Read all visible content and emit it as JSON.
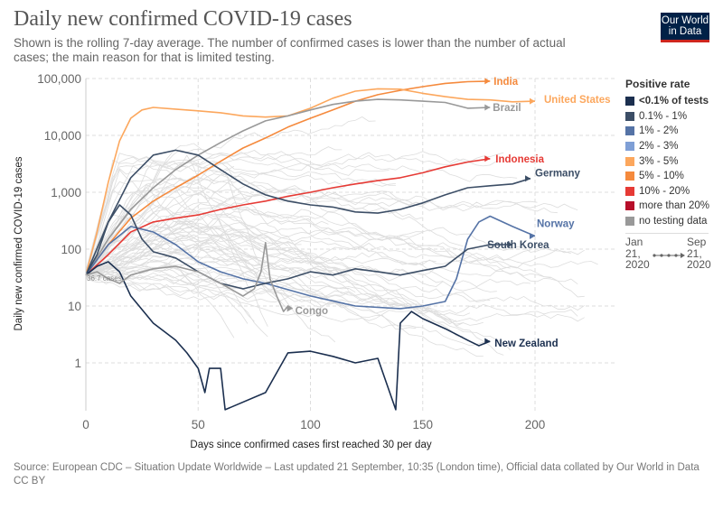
{
  "header": {
    "title": "Daily new confirmed COVID-19 cases",
    "subtitle": "Shown is the rolling 7-day average. The number of confirmed cases is lower than the number of actual cases; the main reason for that is limited testing.",
    "logo_line1": "Our World",
    "logo_line2": "in Data"
  },
  "legend": {
    "title": "Positive rate",
    "items": [
      {
        "label": "<0.1% of tests",
        "color": "#1b2f4f",
        "bold": true
      },
      {
        "label": "0.1% - 1%",
        "color": "#3c4e66"
      },
      {
        "label": "1% - 2%",
        "color": "#5573a6"
      },
      {
        "label": "2% - 3%",
        "color": "#7f9fd6"
      },
      {
        "label": "3% - 5%",
        "color": "#fca75d"
      },
      {
        "label": "5% - 10%",
        "color": "#f58a3d"
      },
      {
        "label": "10% - 20%",
        "color": "#e63a35"
      },
      {
        "label": "more than 20%",
        "color": "#b70f2a"
      },
      {
        "label": "no testing data",
        "color": "#999999"
      }
    ]
  },
  "timeline": {
    "start_label": "Jan 21, 2020",
    "start_parts": [
      "Jan",
      "21,",
      "2020"
    ],
    "end_label": "Sep 21, 2020",
    "end_parts": [
      "Sep",
      "21,",
      "2020"
    ]
  },
  "footer": {
    "source": "Source: European CDC – Situation Update Worldwide – Last updated 21 September, 10:35 (London time), Official data collated by Our World in Data",
    "license": "CC BY"
  },
  "chart_data": {
    "type": "line",
    "title": "Daily new confirmed COVID-19 cases",
    "xlabel": "Days since confirmed cases first reached 30 per day",
    "ylabel": "Daily new confirmed COVID-19 cases",
    "xlim": [
      0,
      235
    ],
    "ylim": [
      0.15,
      100000
    ],
    "yscale": "log",
    "grid": true,
    "legend_position": "right",
    "x_ticks": [
      0,
      50,
      100,
      150,
      200
    ],
    "x_tick_labels": [
      "0",
      "50",
      "100",
      "150",
      "200"
    ],
    "y_ticks": [
      1,
      10,
      100,
      1000,
      10000,
      100000
    ],
    "y_tick_labels": [
      "1",
      "10",
      "100",
      "1,000",
      "10,000",
      "100,000"
    ],
    "annotation_start": "36.7 cases",
    "series": [
      {
        "name": "India",
        "label": "India",
        "color": "#f58a3d",
        "labeled": true,
        "x": [
          0,
          10,
          20,
          30,
          40,
          50,
          60,
          70,
          80,
          90,
          100,
          110,
          120,
          130,
          140,
          150,
          160,
          170,
          180
        ],
        "y": [
          35,
          120,
          350,
          700,
          1200,
          2000,
          3500,
          6000,
          9000,
          14000,
          20000,
          28000,
          40000,
          52000,
          62000,
          72000,
          82000,
          88000,
          90000
        ]
      },
      {
        "name": "United States",
        "label": "United States",
        "color": "#fca75d",
        "labeled": true,
        "x": [
          0,
          5,
          10,
          15,
          20,
          25,
          30,
          40,
          50,
          60,
          70,
          80,
          90,
          100,
          110,
          120,
          130,
          140,
          150,
          160,
          170,
          180,
          190,
          200
        ],
        "y": [
          35,
          200,
          1500,
          8000,
          20000,
          28000,
          31000,
          29000,
          27000,
          25000,
          22000,
          21000,
          22000,
          30000,
          45000,
          60000,
          66000,
          65000,
          55000,
          48000,
          43000,
          42000,
          39000,
          40000
        ]
      },
      {
        "name": "Brazil",
        "label": "Brazil",
        "color": "#999999",
        "labeled": true,
        "x": [
          0,
          10,
          20,
          30,
          40,
          50,
          60,
          70,
          80,
          90,
          100,
          110,
          120,
          130,
          140,
          150,
          160,
          170,
          180
        ],
        "y": [
          35,
          150,
          500,
          1200,
          2500,
          4500,
          7500,
          12000,
          18000,
          22000,
          28000,
          35000,
          40000,
          43000,
          42000,
          40000,
          38000,
          30000,
          31000
        ]
      },
      {
        "name": "Indonesia",
        "label": "Indonesia",
        "color": "#e63a35",
        "labeled": true,
        "x": [
          0,
          10,
          20,
          30,
          40,
          50,
          60,
          70,
          80,
          90,
          100,
          110,
          120,
          130,
          140,
          150,
          160,
          170,
          180
        ],
        "y": [
          35,
          80,
          200,
          300,
          350,
          400,
          500,
          600,
          700,
          850,
          1000,
          1200,
          1400,
          1600,
          1800,
          2200,
          2800,
          3400,
          3900
        ]
      },
      {
        "name": "Germany",
        "label": "Germany",
        "color": "#3c4e66",
        "labeled": true,
        "x": [
          0,
          10,
          20,
          30,
          40,
          50,
          60,
          70,
          80,
          90,
          100,
          110,
          120,
          130,
          140,
          150,
          160,
          170,
          180,
          190,
          198
        ],
        "y": [
          35,
          300,
          1800,
          4500,
          5500,
          4500,
          2500,
          1400,
          900,
          700,
          600,
          550,
          450,
          430,
          500,
          650,
          900,
          1200,
          1300,
          1400,
          1750
        ]
      },
      {
        "name": "Norway",
        "label": "Norway",
        "color": "#5573a6",
        "labeled": true,
        "x": [
          0,
          10,
          20,
          30,
          40,
          50,
          60,
          70,
          80,
          100,
          120,
          140,
          150,
          160,
          165,
          170,
          175,
          180,
          190,
          200
        ],
        "y": [
          35,
          120,
          250,
          200,
          120,
          60,
          40,
          30,
          25,
          15,
          10,
          9,
          10,
          12,
          30,
          150,
          300,
          380,
          250,
          170
        ]
      },
      {
        "name": "South Korea",
        "label": "South Korea",
        "color": "#3c4e66",
        "labeled": true,
        "x": [
          0,
          5,
          10,
          15,
          20,
          25,
          30,
          40,
          50,
          60,
          70,
          80,
          90,
          100,
          110,
          120,
          130,
          140,
          150,
          160,
          170,
          180,
          190
        ],
        "y": [
          35,
          80,
          300,
          600,
          400,
          150,
          90,
          70,
          40,
          25,
          20,
          25,
          30,
          40,
          35,
          45,
          40,
          35,
          42,
          50,
          100,
          120,
          120
        ]
      },
      {
        "name": "New Zealand",
        "label": "New Zealand",
        "color": "#1b2f4f",
        "labeled": true,
        "x": [
          0,
          5,
          10,
          15,
          20,
          30,
          40,
          45,
          50,
          53,
          55,
          60,
          62,
          80,
          90,
          100,
          110,
          120,
          130,
          138,
          140,
          145,
          150,
          160,
          170,
          175,
          180
        ],
        "y": [
          35,
          50,
          60,
          40,
          15,
          5,
          2.5,
          1.5,
          0.8,
          0.3,
          0.8,
          0.8,
          0.15,
          0.3,
          1.5,
          1.6,
          1.3,
          1.0,
          1.2,
          0.15,
          5,
          8,
          6,
          4,
          2.5,
          2,
          2.4
        ]
      },
      {
        "name": "Congo",
        "label": "Congo",
        "color": "#999999",
        "labeled": true,
        "x": [
          0,
          5,
          10,
          15,
          20,
          30,
          40,
          50,
          60,
          70,
          75,
          78,
          80,
          82,
          85,
          88,
          90,
          92
        ],
        "y": [
          35,
          40,
          30,
          25,
          35,
          45,
          50,
          40,
          25,
          15,
          20,
          40,
          130,
          30,
          15,
          8,
          10,
          9
        ]
      }
    ]
  }
}
